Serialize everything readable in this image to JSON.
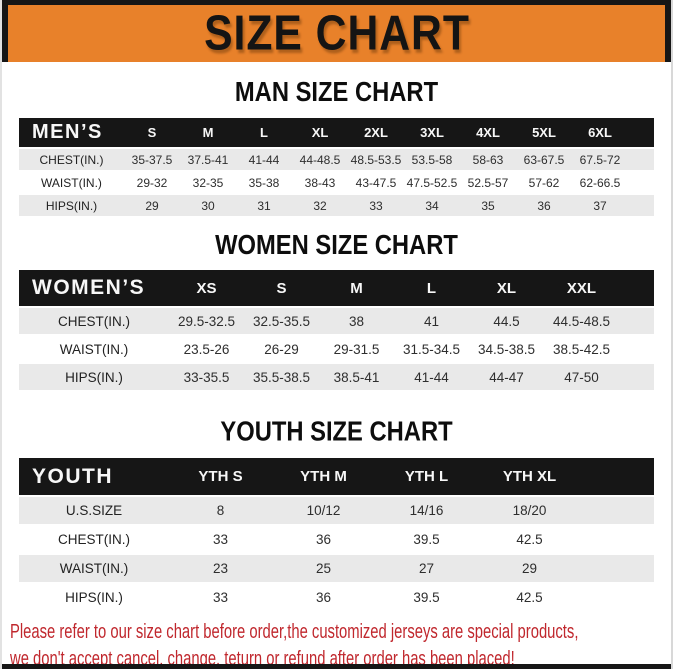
{
  "banner": {
    "title": "SIZE CHART"
  },
  "tables": [
    {
      "heading": "MAN SIZE CHART",
      "corner_label": "MEN’S",
      "columns": [
        "S",
        "M",
        "L",
        "XL",
        "2XL",
        "3XL",
        "4XL",
        "5XL",
        "6XL"
      ],
      "rows": [
        {
          "label": "CHEST(IN.)",
          "values": [
            "35-37.5",
            "37.5-41",
            "41-44",
            "44-48.5",
            "48.5-53.5",
            "53.5-58",
            "58-63",
            "63-67.5",
            "67.5-72"
          ]
        },
        {
          "label": "WAIST(IN.)",
          "values": [
            "29-32",
            "32-35",
            "35-38",
            "38-43",
            "43-47.5",
            "47.5-52.5",
            "52.5-57",
            "57-62",
            "62-66.5"
          ]
        },
        {
          "label": "HIPS(IN.)",
          "values": [
            "29",
            "30",
            "31",
            "32",
            "33",
            "34",
            "35",
            "36",
            "37"
          ]
        }
      ]
    },
    {
      "heading": "WOMEN SIZE CHART",
      "corner_label": "WOMEN’S",
      "columns": [
        "XS",
        "S",
        "M",
        "L",
        "XL",
        "XXL"
      ],
      "rows": [
        {
          "label": "CHEST(IN.)",
          "values": [
            "29.5-32.5",
            "32.5-35.5",
            "38",
            "41",
            "44.5",
            "44.5-48.5"
          ]
        },
        {
          "label": "WAIST(IN.)",
          "values": [
            "23.5-26",
            "26-29",
            "29-31.5",
            "31.5-34.5",
            "34.5-38.5",
            "38.5-42.5"
          ]
        },
        {
          "label": "HIPS(IN.)",
          "values": [
            "33-35.5",
            "35.5-38.5",
            "38.5-41",
            "41-44",
            "44-47",
            "47-50"
          ]
        }
      ]
    },
    {
      "heading": "YOUTH SIZE CHART",
      "corner_label": "YOUTH",
      "columns": [
        "YTH S",
        "YTH M",
        "YTH L",
        "YTH XL"
      ],
      "rows": [
        {
          "label": "U.S.SIZE",
          "values": [
            "8",
            "10/12",
            "14/16",
            "18/20"
          ]
        },
        {
          "label": "CHEST(IN.)",
          "values": [
            "33",
            "36",
            "39.5",
            "42.5"
          ]
        },
        {
          "label": "WAIST(IN.)",
          "values": [
            "23",
            "25",
            "27",
            "29"
          ]
        },
        {
          "label": "HIPS(IN.)",
          "values": [
            "33",
            "36",
            "39.5",
            "42.5"
          ]
        }
      ]
    }
  ],
  "footer": {
    "line1": "Please refer to our size chart before order,the customized jerseys are special products,",
    "line2": "we don't accept cancel, change, teturn or refund after order has been placed!"
  },
  "colors": {
    "banner_orange": "#E8812A",
    "header_black": "#161616",
    "row_stripe_gray": "#E9E9E9",
    "footer_red": "#C0272D"
  }
}
